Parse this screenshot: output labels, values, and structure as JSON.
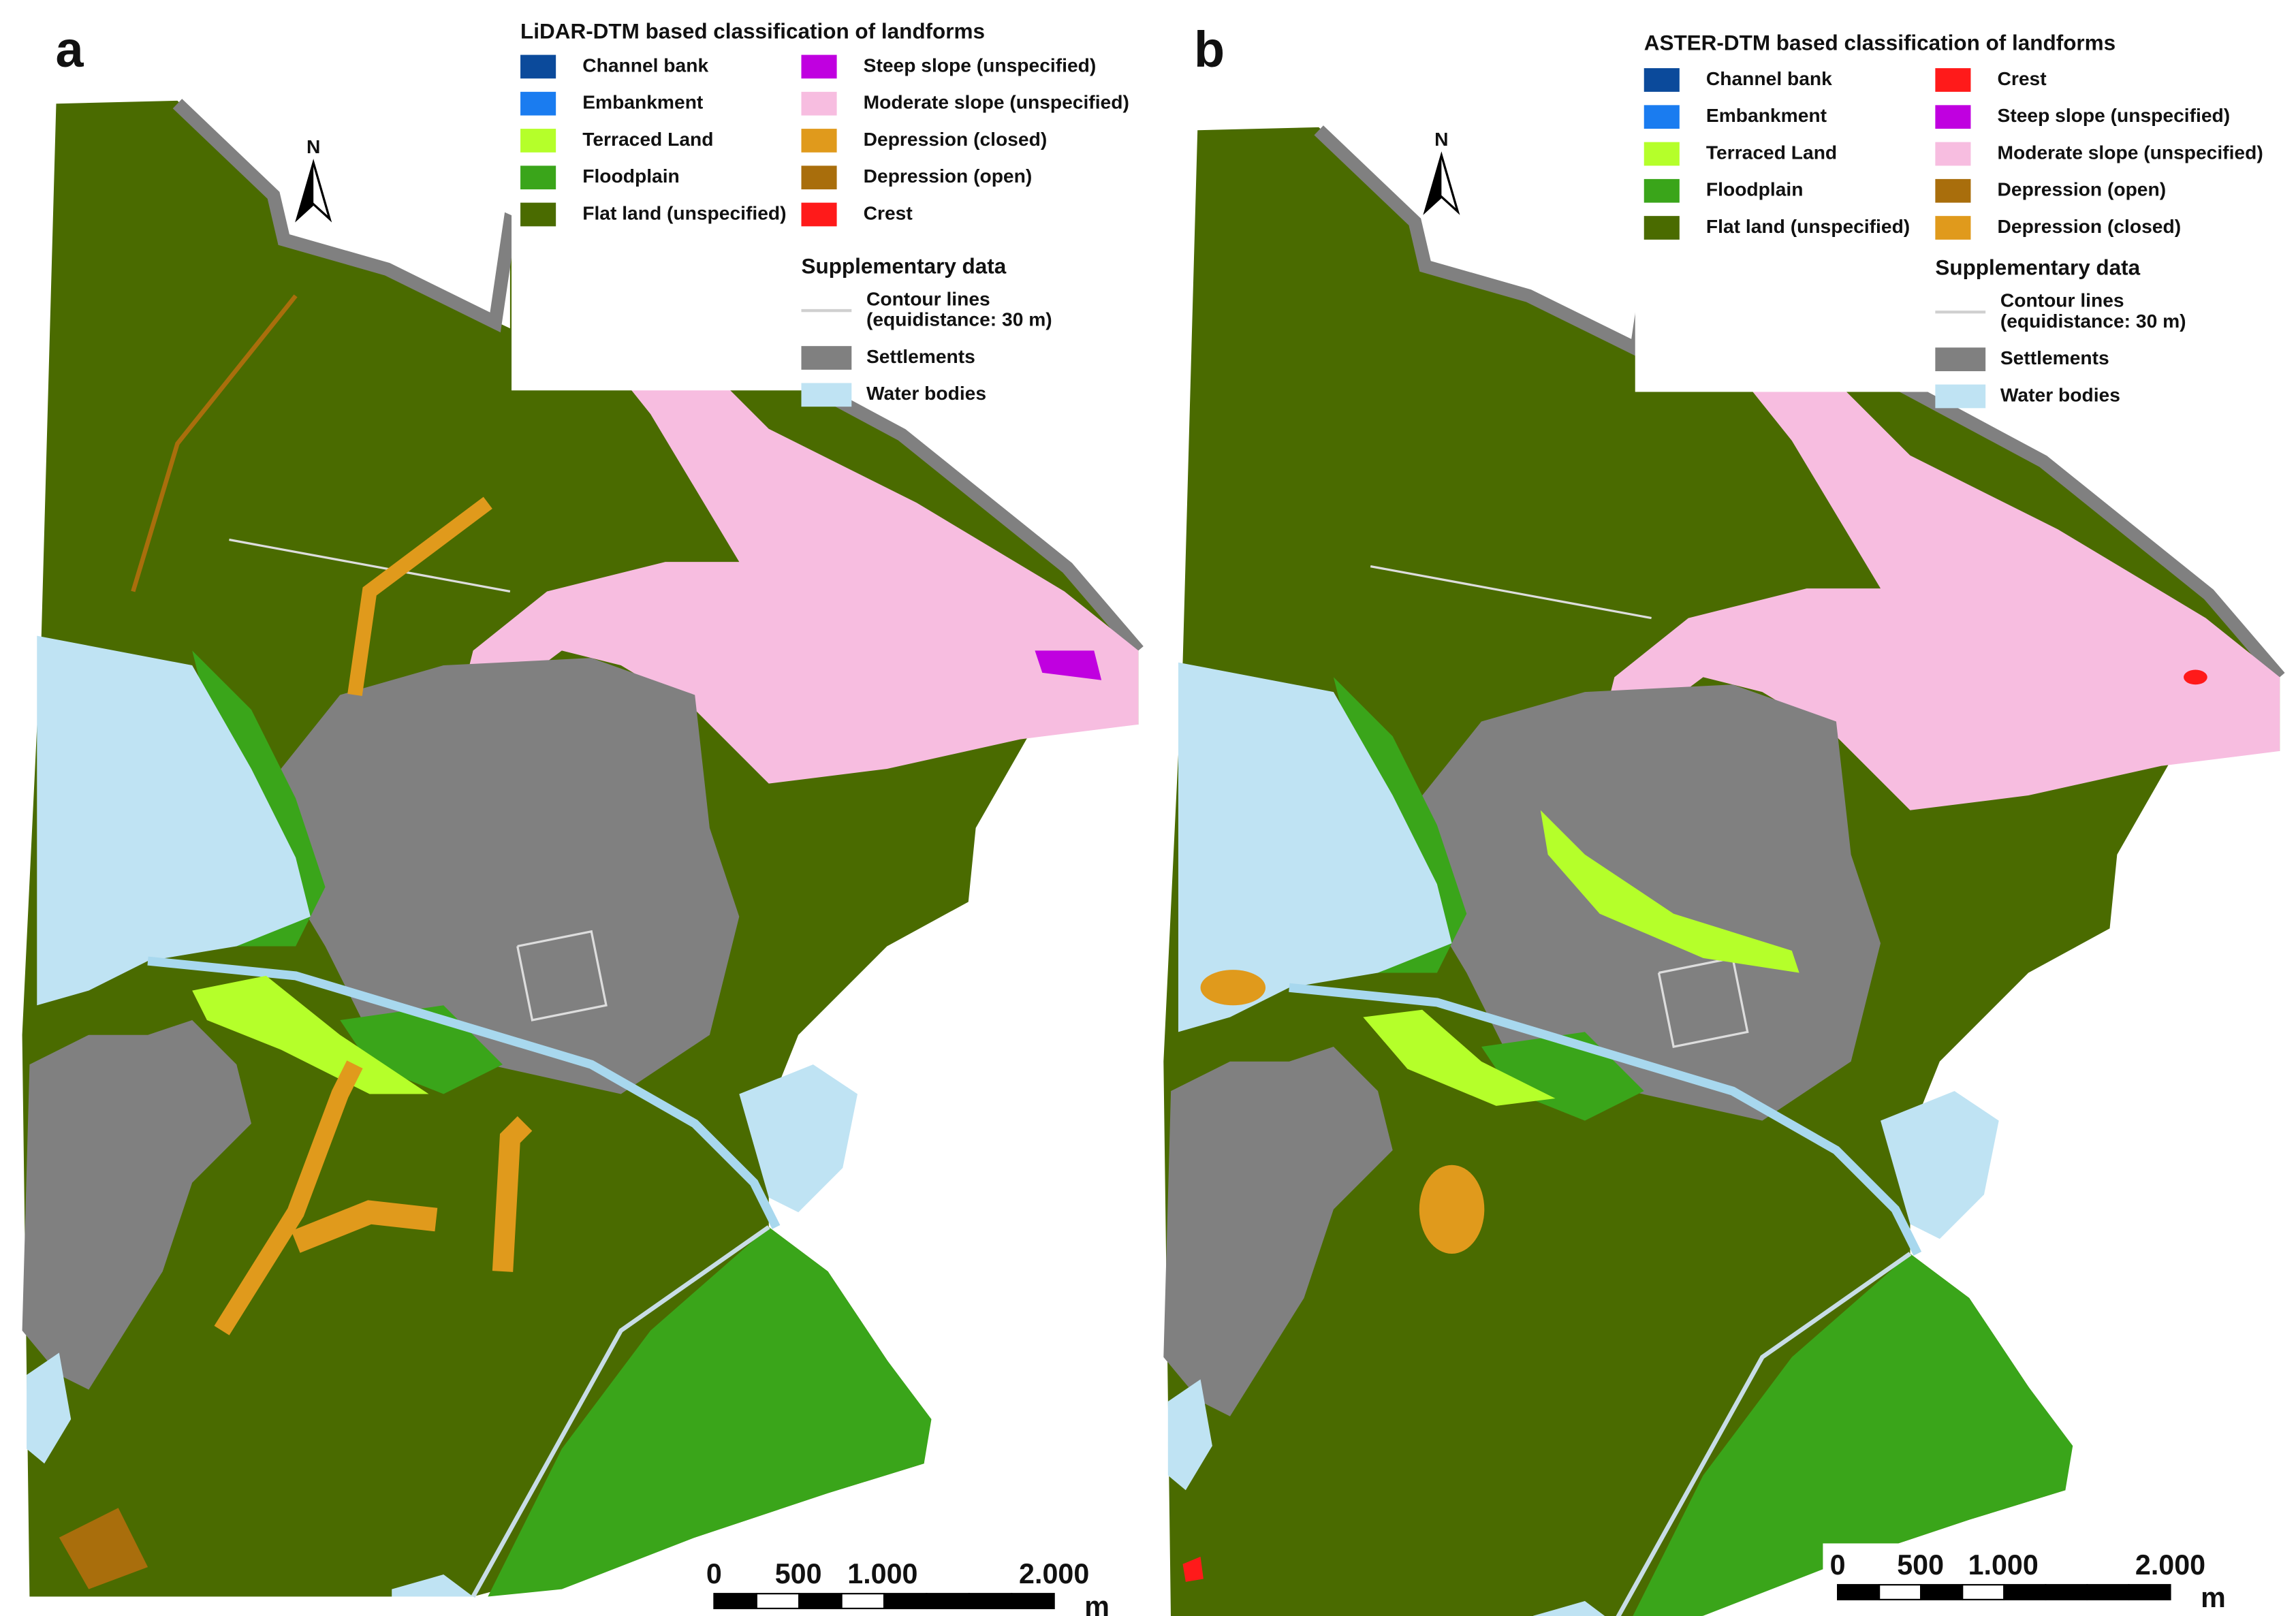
{
  "panels": [
    {
      "label": "a",
      "north": "N",
      "legend": {
        "title": "LiDAR-DTM based classification of landforms",
        "items": [
          {
            "label": "Channel bank",
            "color": "#0b4a9b"
          },
          {
            "label": "Embankment",
            "color": "#1a7cf0"
          },
          {
            "label": "Terraced Land",
            "color": "#b5ff2a"
          },
          {
            "label": "Floodplain",
            "color": "#3aa51a"
          },
          {
            "label": "Flat land (unspecified)",
            "color": "#4a6b00"
          },
          {
            "label": "Steep slope (unspecified)",
            "color": "#c000e0"
          },
          {
            "label": "Moderate slope (unspecified)",
            "color": "#f7bde0"
          },
          {
            "label": "Depression (closed)",
            "color": "#e09a1c"
          },
          {
            "label": "Depression (open)",
            "color": "#a96e0c"
          },
          {
            "label": "Crest",
            "color": "#ff1a1a"
          }
        ]
      },
      "supplementary": {
        "title": "Supplementary data",
        "items": [
          {
            "lines": [
              "Contour lines",
              "(equidistance: 30 m)"
            ],
            "color": "#d0d0d0",
            "kind": "line"
          },
          {
            "lines": [
              "Settlements"
            ],
            "color": "#808080",
            "kind": "box"
          },
          {
            "lines": [
              "Water bodies"
            ],
            "color": "#bfe3f3",
            "kind": "box"
          }
        ]
      },
      "scale_bar": {
        "labels": [
          "0",
          "500",
          "1.000",
          "2.000"
        ],
        "unit": "m"
      }
    },
    {
      "label": "b",
      "north": "N",
      "legend": {
        "title": "ASTER-DTM based classification of landforms",
        "items": [
          {
            "label": "Channel bank",
            "color": "#0b4a9b"
          },
          {
            "label": "Embankment",
            "color": "#1a7cf0"
          },
          {
            "label": "Terraced Land",
            "color": "#b5ff2a"
          },
          {
            "label": "Floodplain",
            "color": "#3aa51a"
          },
          {
            "label": "Flat land (unspecified)",
            "color": "#4a6b00"
          },
          {
            "label": "Crest",
            "color": "#ff1a1a"
          },
          {
            "label": "Steep slope (unspecified)",
            "color": "#c000e0"
          },
          {
            "label": "Moderate slope (unspecified)",
            "color": "#f7bde0"
          },
          {
            "label": "Depression (open)",
            "color": "#a96e0c"
          },
          {
            "label": "Depression (closed)",
            "color": "#e09a1c"
          }
        ]
      },
      "supplementary": {
        "title": "Supplementary data",
        "items": [
          {
            "lines": [
              "Contour lines",
              "(equidistance: 30 m)"
            ],
            "color": "#d0d0d0",
            "kind": "line"
          },
          {
            "lines": [
              "Settlements"
            ],
            "color": "#808080",
            "kind": "box"
          },
          {
            "lines": [
              "Water bodies"
            ],
            "color": "#bfe3f3",
            "kind": "box"
          }
        ]
      },
      "scale_bar": {
        "labels": [
          "0",
          "500",
          "1.000",
          "2.000"
        ],
        "unit": "m"
      }
    }
  ]
}
